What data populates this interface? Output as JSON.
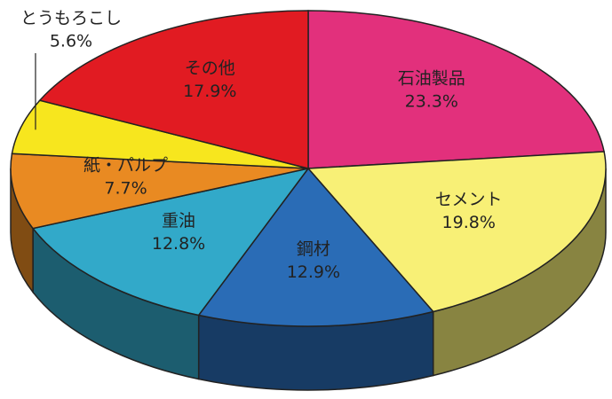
{
  "chart_data": {
    "type": "pie",
    "categories": [
      "石油製品",
      "セメント",
      "鋼材",
      "重油",
      "紙・パルプ",
      "とうもろこし",
      "その他"
    ],
    "values": [
      23.3,
      19.8,
      12.9,
      12.8,
      7.7,
      5.6,
      17.9
    ],
    "value_labels": [
      "23.3%",
      "19.8%",
      "12.9%",
      "12.8%",
      "7.7%",
      "5.6%",
      "17.9%"
    ],
    "colors": [
      "#e2307c",
      "#f8f076",
      "#2a6cb6",
      "#32a9c9",
      "#e98a22",
      "#f7e61e",
      "#e11b22"
    ]
  }
}
